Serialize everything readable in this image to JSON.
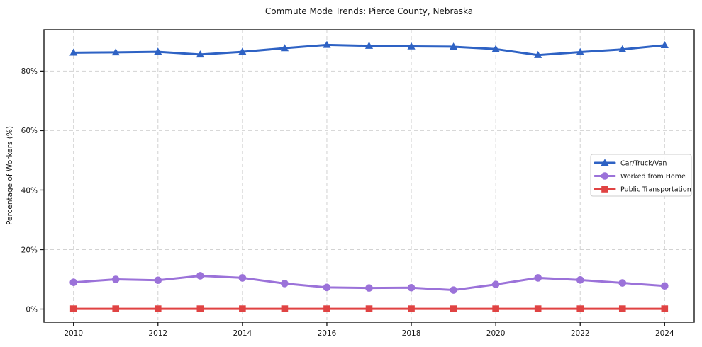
{
  "figure": {
    "background": "#ffffff",
    "axis_color": "#1a1a1a",
    "grid_color": "#d2d2d2"
  },
  "chart_data": {
    "type": "line",
    "title": "Commute Mode Trends: Pierce County, Nebraska",
    "xlabel": "",
    "ylabel": "Percentage of Workers (%)",
    "x": [
      2010,
      2011,
      2012,
      2013,
      2014,
      2015,
      2016,
      2017,
      2018,
      2019,
      2020,
      2021,
      2022,
      2023,
      2024
    ],
    "series": [
      {
        "name": "Car/Truck/Van",
        "color": "#2e62c4",
        "marker": "triangle",
        "values": [
          86.2,
          86.3,
          86.5,
          85.6,
          86.5,
          87.7,
          88.8,
          88.5,
          88.3,
          88.2,
          87.4,
          85.4,
          86.4,
          87.3,
          88.7
        ]
      },
      {
        "name": "Worked from Home",
        "color": "#9b72d9",
        "marker": "circle",
        "values": [
          9.0,
          10.0,
          9.7,
          11.2,
          10.5,
          8.6,
          7.3,
          7.1,
          7.2,
          6.4,
          8.3,
          10.5,
          9.8,
          8.8,
          7.8
        ]
      },
      {
        "name": "Public Transportation",
        "color": "#e04343",
        "marker": "square",
        "values": [
          0.1,
          0.1,
          0.1,
          0.1,
          0.1,
          0.1,
          0.1,
          0.1,
          0.1,
          0.1,
          0.1,
          0.1,
          0.1,
          0.1,
          0.1
        ]
      }
    ],
    "xlim": [
      2009.3,
      2024.7
    ],
    "ylim": [
      -4.4,
      93.9
    ],
    "x_ticks": [
      {
        "value": 2010,
        "label": "2010"
      },
      {
        "value": 2012,
        "label": "2012"
      },
      {
        "value": 2014,
        "label": "2014"
      },
      {
        "value": 2016,
        "label": "2016"
      },
      {
        "value": 2018,
        "label": "2018"
      },
      {
        "value": 2020,
        "label": "2020"
      },
      {
        "value": 2022,
        "label": "2022"
      },
      {
        "value": 2024,
        "label": "2024"
      }
    ],
    "y_ticks": [
      {
        "value": 0,
        "label": "0%"
      },
      {
        "value": 20,
        "label": "20%"
      },
      {
        "value": 40,
        "label": "40%"
      },
      {
        "value": 60,
        "label": "60%"
      },
      {
        "value": 80,
        "label": "80%"
      }
    ],
    "grid": true,
    "legend_position": "center right"
  }
}
